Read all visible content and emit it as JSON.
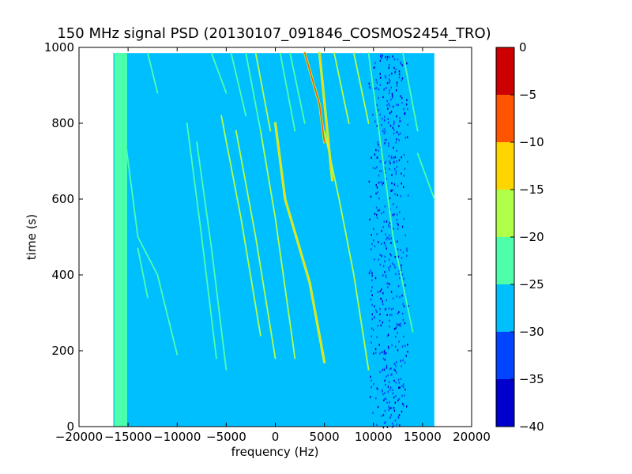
{
  "chart_data": {
    "type": "heatmap",
    "title": "150 MHz signal PSD (20130107_091846_COSMOS2454_TRO)",
    "xlabel": "frequency (Hz)",
    "ylabel": "time (s)",
    "xlim": [
      -20000,
      20000
    ],
    "ylim": [
      0,
      1000
    ],
    "xticks": [
      -20000,
      -15000,
      -10000,
      -5000,
      0,
      5000,
      10000,
      15000,
      20000
    ],
    "yticks": [
      0,
      200,
      400,
      600,
      800,
      1000
    ],
    "data_extent": {
      "x": [
        -16500,
        16200
      ],
      "y": [
        0,
        985
      ]
    },
    "colorbar": {
      "ticks": [
        0,
        -5,
        -10,
        -15,
        -20,
        -25,
        -30,
        -35,
        -40
      ],
      "range": [
        -40,
        0
      ],
      "levels": [
        {
          "from": -40,
          "to": -35,
          "color": "#0000cc"
        },
        {
          "from": -35,
          "to": -30,
          "color": "#0044ff"
        },
        {
          "from": -30,
          "to": -25,
          "color": "#00bfff"
        },
        {
          "from": -25,
          "to": -20,
          "color": "#4dffaa"
        },
        {
          "from": -20,
          "to": -15,
          "color": "#b0ff48"
        },
        {
          "from": -15,
          "to": -10,
          "color": "#ffd500"
        },
        {
          "from": -10,
          "to": -5,
          "color": "#ff5500"
        },
        {
          "from": -5,
          "to": 0,
          "color": "#cc0000"
        }
      ]
    },
    "background_level": -27,
    "left_band": {
      "x": [
        -16400,
        -15100
      ],
      "level": -22
    },
    "noisy_band": {
      "x": [
        9500,
        13500
      ],
      "level": -32
    },
    "traces": [
      {
        "points": [
          [
            -16000,
            985
          ],
          [
            -15500,
            800
          ],
          [
            -14000,
            500
          ],
          [
            -12000,
            400
          ],
          [
            -10000,
            190
          ]
        ],
        "level": -22
      },
      {
        "points": [
          [
            -14000,
            470
          ],
          [
            -13000,
            340
          ]
        ],
        "level": -22
      },
      {
        "points": [
          [
            -13000,
            985
          ],
          [
            -12000,
            880
          ]
        ],
        "level": -22
      },
      {
        "points": [
          [
            -9000,
            800
          ],
          [
            -7500,
            500
          ],
          [
            -6000,
            180
          ]
        ],
        "level": -22
      },
      {
        "points": [
          [
            -8000,
            750
          ],
          [
            -6500,
            470
          ],
          [
            -5000,
            150
          ]
        ],
        "level": -22
      },
      {
        "points": [
          [
            -6500,
            985
          ],
          [
            -5000,
            880
          ]
        ],
        "level": -22
      },
      {
        "points": [
          [
            -5500,
            820
          ],
          [
            -3500,
            550
          ],
          [
            -1500,
            240
          ]
        ],
        "level": -17
      },
      {
        "points": [
          [
            -4500,
            985
          ],
          [
            -3000,
            820
          ]
        ],
        "level": -22
      },
      {
        "points": [
          [
            -3000,
            985
          ],
          [
            -1500,
            780
          ]
        ],
        "level": -22
      },
      {
        "points": [
          [
            -4000,
            780
          ],
          [
            -2000,
            500
          ],
          [
            0,
            180
          ]
        ],
        "level": -17
      },
      {
        "points": [
          [
            -2000,
            985
          ],
          [
            -500,
            780
          ]
        ],
        "level": -17
      },
      {
        "points": [
          [
            0,
            800
          ],
          [
            1000,
            600
          ],
          [
            3500,
            380
          ],
          [
            5000,
            170
          ]
        ],
        "level": -12
      },
      {
        "points": [
          [
            -1500,
            780
          ],
          [
            0,
            550
          ],
          [
            2000,
            180
          ]
        ],
        "level": -17
      },
      {
        "points": [
          [
            500,
            985
          ],
          [
            2000,
            780
          ]
        ],
        "level": -22
      },
      {
        "points": [
          [
            3000,
            985
          ],
          [
            4500,
            850
          ],
          [
            5000,
            750
          ]
        ],
        "level": -7
      },
      {
        "points": [
          [
            1500,
            985
          ],
          [
            3000,
            800
          ]
        ],
        "level": -22
      },
      {
        "points": [
          [
            5000,
            780
          ],
          [
            6500,
            600
          ],
          [
            8000,
            400
          ],
          [
            9500,
            150
          ]
        ],
        "level": -17
      },
      {
        "points": [
          [
            4500,
            985
          ],
          [
            5800,
            650
          ]
        ],
        "level": -12
      },
      {
        "points": [
          [
            6000,
            985
          ],
          [
            7500,
            800
          ]
        ],
        "level": -17
      },
      {
        "points": [
          [
            8000,
            985
          ],
          [
            9500,
            800
          ]
        ],
        "level": -17
      },
      {
        "points": [
          [
            9500,
            985
          ],
          [
            12000,
            500
          ],
          [
            14000,
            250
          ]
        ],
        "level": -22
      },
      {
        "points": [
          [
            13000,
            985
          ],
          [
            14500,
            780
          ]
        ],
        "level": -22
      },
      {
        "points": [
          [
            14500,
            720
          ],
          [
            16200,
            600
          ]
        ],
        "level": -22
      }
    ]
  }
}
